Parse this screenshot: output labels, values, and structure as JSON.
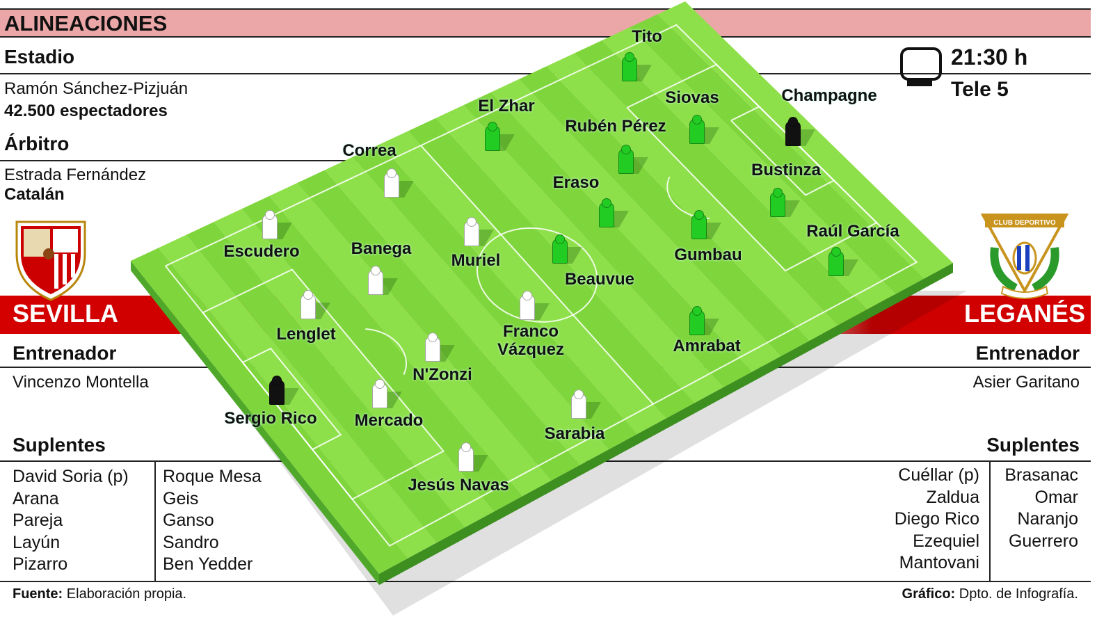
{
  "header": {
    "title": "ALINEACIONES"
  },
  "match": {
    "stadium_label": "Estadio",
    "stadium": "Ramón Sánchez-Pizjuán",
    "attendance": "42.500 espectadores",
    "referee_label": "Árbitro",
    "referee": "Estrada Fernández",
    "referee_region": "Catalán",
    "time": "21:30 h",
    "channel": "Tele 5",
    "tv_icon": "tv-icon"
  },
  "home": {
    "name": "SEVILLA",
    "coach_label": "Entrenador",
    "coach": "Vincenzo Montella",
    "subs_label": "Suplentes",
    "subs_col1": [
      "David Soria (p)",
      "Arana",
      "Pareja",
      "Layún",
      "Pizarro"
    ],
    "subs_col2": [
      "Roque Mesa",
      "Geis",
      "Ganso",
      "Sandro",
      "Ben Yedder"
    ],
    "color": "#ffffff"
  },
  "away": {
    "name": "LEGANÉS",
    "coach_label": "Entrenador",
    "coach": "Asier Garitano",
    "subs_label": "Suplentes",
    "subs_col1": [
      "Cuéllar (p)",
      "Zaldua",
      "Diego Rico",
      "Ezequiel",
      "Mantovani"
    ],
    "subs_col2": [
      "Brasanac",
      "Omar",
      "Naranjo",
      "Guerrero"
    ],
    "color": "#22cc22",
    "crest_text": [
      "CLUB DEPORTIVO",
      "C",
      "D",
      "L",
      "LEGANÉS"
    ]
  },
  "home_players": [
    "Sergio Rico",
    "Jesús Navas",
    "Mercado",
    "Lenglet",
    "Escudero",
    "N'Zonzi",
    "Banega",
    "Sarabia",
    "Franco Vázquez",
    "Muriel",
    "Correa"
  ],
  "away_players": [
    "Champagne",
    "Tito",
    "Siovas",
    "Bustinza",
    "Raúl García",
    "El Zhar",
    "Rubén Pérez",
    "Eraso",
    "Gumbau",
    "Amrabat",
    "Beauvue"
  ],
  "goalkeeper_color": "#111111",
  "footer": {
    "source_label": "Fuente:",
    "source": "Elaboración propia.",
    "graphic_label": "Gráfico:",
    "graphic": "Dpto. de Infografía."
  }
}
